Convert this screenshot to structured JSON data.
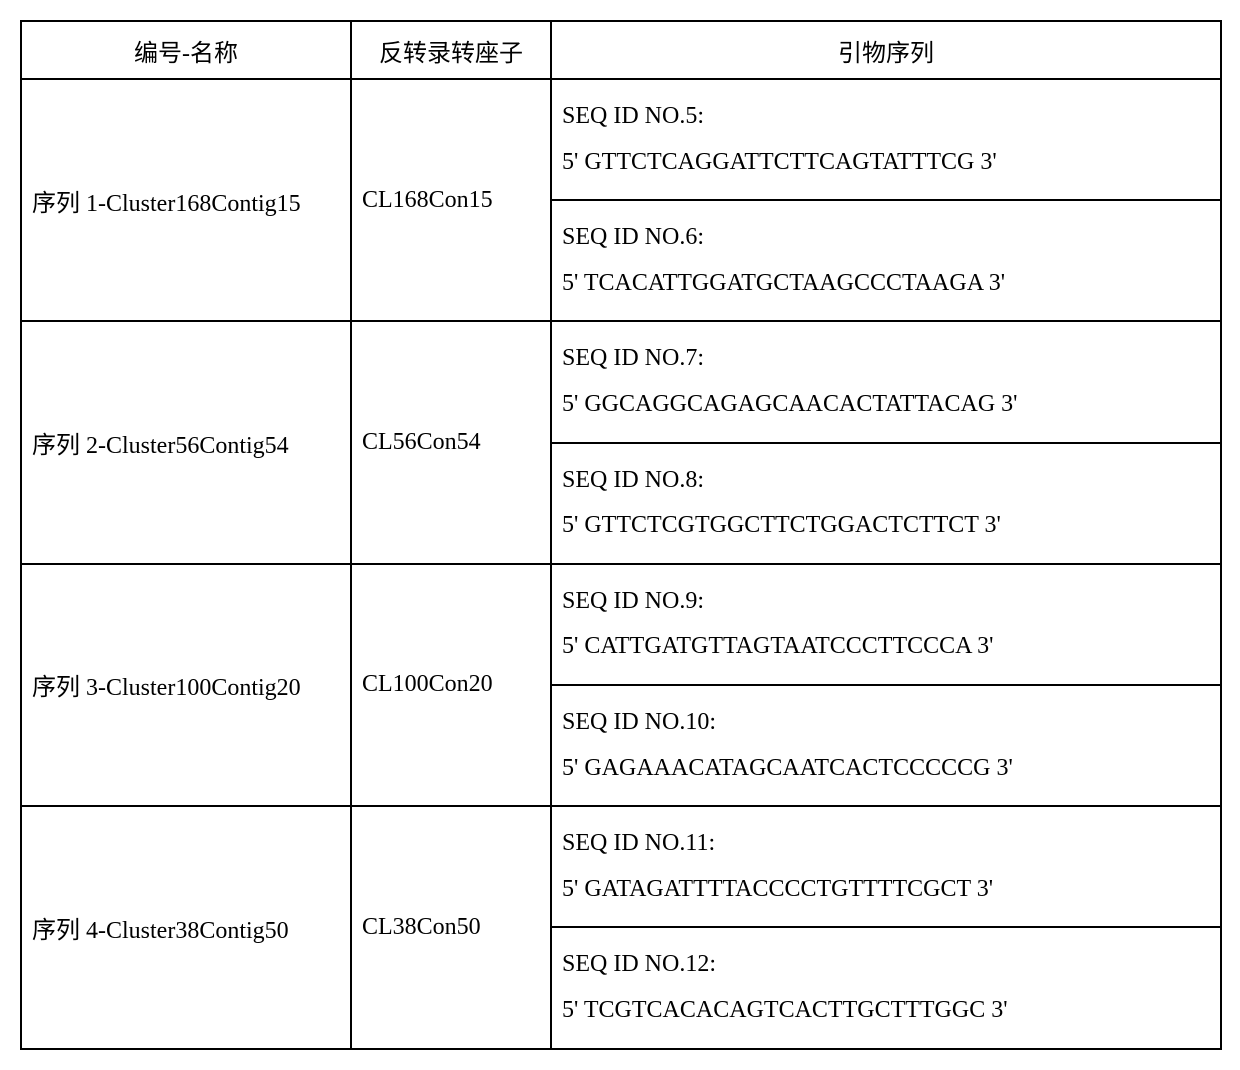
{
  "headers": {
    "col1": "编号-名称",
    "col2": "反转录转座子",
    "col3": "引物序列"
  },
  "rows": [
    {
      "name": "序列 1-Cluster168Contig15",
      "transposon": "CL168Con15",
      "primers": [
        {
          "id": "SEQ ID NO.5:",
          "seq": "5' GTTCTCAGGATTCTTCAGTATTTCG 3'"
        },
        {
          "id": "SEQ ID NO.6:",
          "seq": "5' TCACATTGGATGCTAAGCCCTAAGA 3'"
        }
      ]
    },
    {
      "name": "序列 2-Cluster56Contig54",
      "transposon": "CL56Con54",
      "primers": [
        {
          "id": "SEQ ID NO.7:",
          "seq": "5' GGCAGGCAGAGCAACACTATTACAG 3'"
        },
        {
          "id": "SEQ ID NO.8:",
          "seq": "5' GTTCTCGTGGCTTCTGGACTCTTCT 3'"
        }
      ]
    },
    {
      "name": "序列 3-Cluster100Contig20",
      "transposon": "CL100Con20",
      "primers": [
        {
          "id": "SEQ ID NO.9:",
          "seq": "5' CATTGATGTTAGTAATCCCTTCCCA 3'"
        },
        {
          "id": "SEQ ID NO.10:",
          "seq": "5' GAGAAACATAGCAATCACTCCCCCG 3'"
        }
      ]
    },
    {
      "name": "序列 4-Cluster38Contig50",
      "transposon": "CL38Con50",
      "primers": [
        {
          "id": "SEQ ID NO.11:",
          "seq": "5' GATAGATTTTACCCCTGTTTTCGCT 3'"
        },
        {
          "id": "SEQ ID NO.12:",
          "seq": "5' TCGTCACACAGTCACTTGCTTTGGC 3'"
        }
      ]
    }
  ]
}
